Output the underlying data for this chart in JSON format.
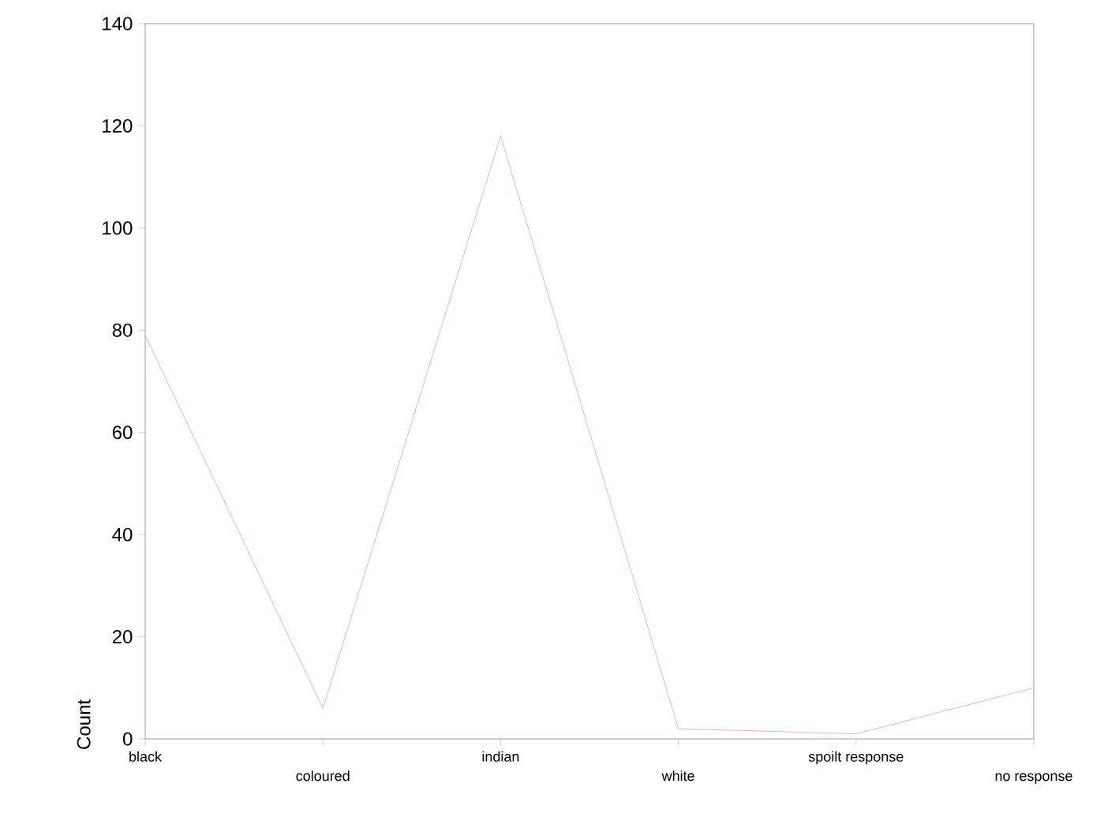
{
  "chart_data": {
    "type": "line",
    "ylabel": "Count",
    "categories": [
      "black",
      "coloured",
      "indian",
      "white",
      "spoilt response",
      "no response"
    ],
    "values": [
      79,
      6,
      118,
      2,
      1,
      10
    ],
    "color": "#e8a0a0",
    "ylim": [
      0,
      140
    ],
    "yticks": [
      0,
      20,
      40,
      60,
      80,
      100,
      120,
      140
    ],
    "grid": false,
    "marker": "none",
    "line_style": "solid"
  }
}
